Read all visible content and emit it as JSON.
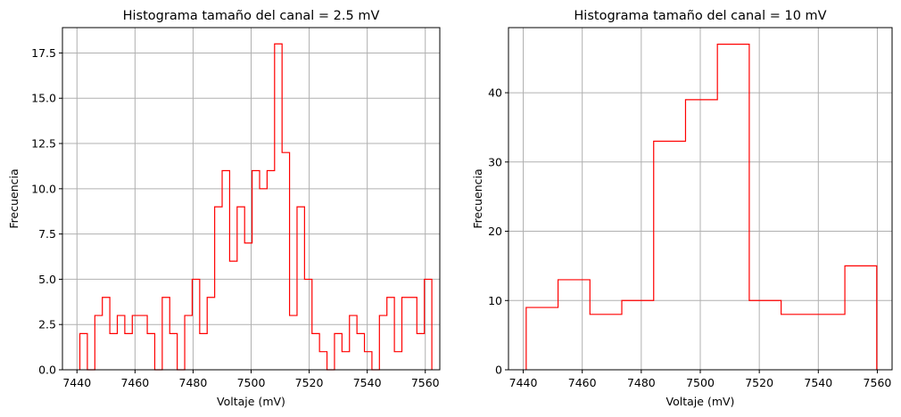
{
  "chart_data": [
    {
      "type": "bar",
      "histtype": "step",
      "title": "Histograma tamaño del canal = 2.5 mV",
      "xlabel": "Voltaje (mV)",
      "ylabel": "Frecuencia",
      "xlim": [
        7435,
        7565
      ],
      "ylim": [
        0,
        18.9
      ],
      "xticks": [
        7440,
        7460,
        7480,
        7500,
        7520,
        7540,
        7560
      ],
      "yticks": [
        0,
        2.5,
        5,
        7.5,
        10,
        12.5,
        15,
        17.5
      ],
      "ytick_labels": [
        "0.0",
        "2.5",
        "5.0",
        "7.5",
        "10.0",
        "12.5",
        "15.0",
        "17.5"
      ],
      "grid": true,
      "color": "#ff0000",
      "bin_start": 7441,
      "bin_width": 2.58,
      "values": [
        2,
        0,
        3,
        4,
        2,
        3,
        2,
        3,
        3,
        2,
        0,
        4,
        2,
        0,
        3,
        5,
        2,
        4,
        9,
        11,
        6,
        9,
        7,
        11,
        10,
        11,
        18,
        12,
        3,
        9,
        5,
        2,
        1,
        0,
        2,
        1,
        3,
        2,
        1,
        0,
        3,
        4,
        1,
        4,
        4,
        2,
        5
      ]
    },
    {
      "type": "bar",
      "histtype": "step",
      "title": "Histograma tamaño del canal = 10 mV",
      "xlabel": "Voltaje (mV)",
      "ylabel": "Frecuencia",
      "xlim": [
        7435,
        7565
      ],
      "ylim": [
        0,
        49.4
      ],
      "xticks": [
        7440,
        7460,
        7480,
        7500,
        7520,
        7540,
        7560
      ],
      "yticks": [
        0,
        10,
        20,
        30,
        40
      ],
      "ytick_labels": [
        "0",
        "10",
        "20",
        "30",
        "40"
      ],
      "grid": true,
      "color": "#ff0000",
      "bin_start": 7441,
      "bin_width": 10.8,
      "values": [
        9,
        13,
        8,
        10,
        33,
        39,
        47,
        10,
        8,
        8,
        15
      ]
    }
  ]
}
